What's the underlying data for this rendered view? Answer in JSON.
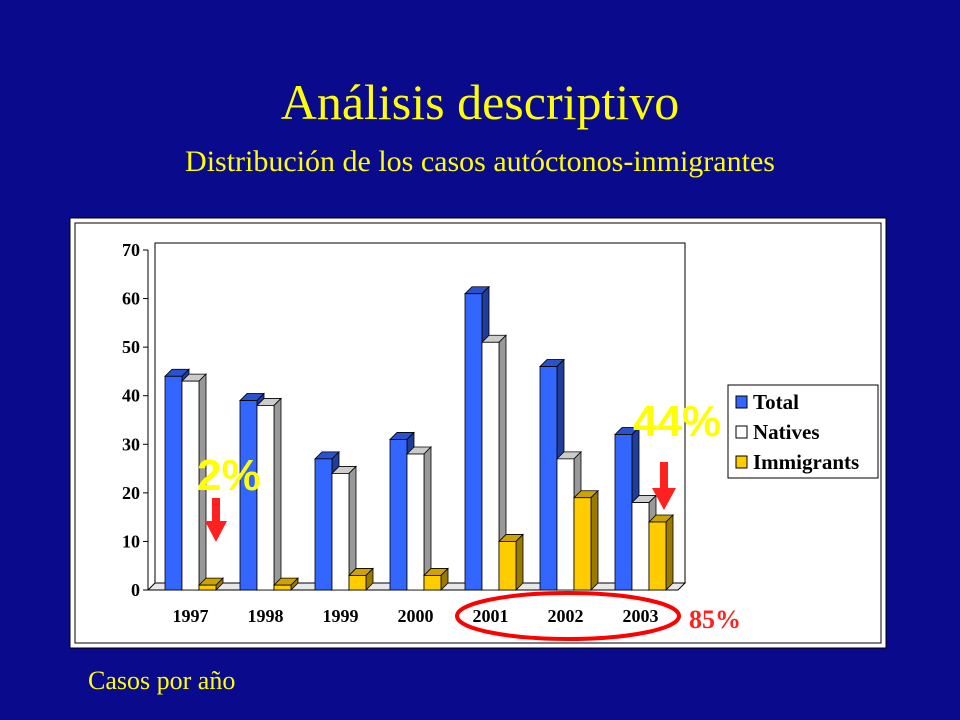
{
  "slide": {
    "title": "Análisis descriptivo",
    "subtitle": "Distribución  de los casos autóctonos-inmigrantes",
    "footnote": "Casos por año"
  },
  "annotations": {
    "callout_1997": "2%",
    "callout_2003": "44%",
    "highlight_label": "85%",
    "highlight_categories": [
      "2001",
      "2002",
      "2003"
    ]
  },
  "colors": {
    "background": "#0a0a8c",
    "title": "#ffff00",
    "total": "#3366ff",
    "natives": "#ffffff",
    "immigrants": "#ffcc00",
    "accent": "#ff2020"
  },
  "chart_data": {
    "type": "bar",
    "categories": [
      "1997",
      "1998",
      "1999",
      "2000",
      "2001",
      "2002",
      "2003"
    ],
    "series": [
      {
        "name": "Total",
        "values": [
          44,
          39,
          27,
          31,
          61,
          46,
          32
        ]
      },
      {
        "name": "Natives",
        "values": [
          43,
          38,
          24,
          28,
          51,
          27,
          18
        ]
      },
      {
        "name": "Immigrants",
        "values": [
          1,
          1,
          3,
          3,
          10,
          19,
          14
        ]
      }
    ],
    "ylim": [
      0,
      70
    ],
    "yticks": [
      "0",
      "10",
      "20",
      "30",
      "40",
      "50",
      "60",
      "70"
    ],
    "grid": false,
    "legend": "right",
    "style": "3d-columns"
  }
}
